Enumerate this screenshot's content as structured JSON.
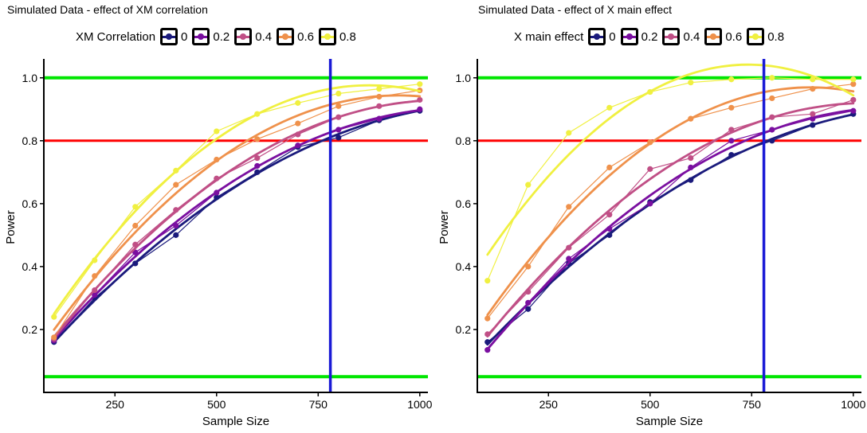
{
  "colors": {
    "0": "#1a1a7c",
    "0.2": "#7a0fa0",
    "0.4": "#c04f86",
    "0.6": "#ef914b",
    "0.8": "#f0f040",
    "green": "#00e600",
    "red": "#ff0000",
    "blue": "#1a1ad6"
  },
  "chart_data": [
    {
      "type": "line",
      "title": "Simulated Data - effect of XM correlation",
      "legend_title": "XM Correlation",
      "legend_position": "top",
      "xlabel": "Sample Size",
      "ylabel": "Power",
      "xlim": [
        75,
        1020
      ],
      "ylim": [
        0,
        1.05
      ],
      "xticks": [
        250,
        500,
        750,
        1000
      ],
      "yticks": [
        0.2,
        0.4,
        0.6,
        0.8,
        1.0
      ],
      "xtick_labels": [
        "250",
        "500",
        "750",
        "1000"
      ],
      "ytick_labels": [
        "0.2",
        "0.4",
        "0.6",
        "0.8",
        "1.0"
      ],
      "x": [
        100,
        200,
        300,
        400,
        500,
        600,
        700,
        800,
        900,
        1000
      ],
      "hlines": [
        1.0,
        0.8,
        0.05
      ],
      "vline": 780,
      "series": [
        {
          "name": "0",
          "values": [
            0.16,
            0.3,
            0.41,
            0.5,
            0.62,
            0.7,
            0.78,
            0.81,
            0.865,
            0.895
          ]
        },
        {
          "name": "0.2",
          "values": [
            0.165,
            0.31,
            0.445,
            0.53,
            0.635,
            0.72,
            0.785,
            0.835,
            0.87,
            0.9
          ]
        },
        {
          "name": "0.4",
          "values": [
            0.17,
            0.325,
            0.47,
            0.58,
            0.68,
            0.745,
            0.82,
            0.875,
            0.91,
            0.93
          ]
        },
        {
          "name": "0.6",
          "values": [
            0.175,
            0.37,
            0.53,
            0.66,
            0.74,
            0.805,
            0.855,
            0.91,
            0.94,
            0.96
          ]
        },
        {
          "name": "0.8",
          "values": [
            0.24,
            0.42,
            0.59,
            0.705,
            0.83,
            0.885,
            0.92,
            0.95,
            0.965,
            0.98
          ]
        }
      ]
    },
    {
      "type": "line",
      "title": "Simulated Data - effect of X main effect",
      "legend_title": "X main effect",
      "legend_position": "top",
      "xlabel": "Sample Size",
      "ylabel": "Power",
      "xlim": [
        75,
        1020
      ],
      "ylim": [
        0,
        1.05
      ],
      "xticks": [
        250,
        500,
        750,
        1000
      ],
      "yticks": [
        0.2,
        0.4,
        0.6,
        0.8,
        1.0
      ],
      "xtick_labels": [
        "250",
        "500",
        "750",
        "1000"
      ],
      "ytick_labels": [
        "0.2",
        "0.4",
        "0.6",
        "0.8",
        "1.0"
      ],
      "x": [
        100,
        200,
        300,
        400,
        500,
        600,
        700,
        800,
        900,
        1000
      ],
      "hlines": [
        1.0,
        0.8,
        0.05
      ],
      "vline": 780,
      "series": [
        {
          "name": "0",
          "values": [
            0.16,
            0.265,
            0.41,
            0.5,
            0.605,
            0.675,
            0.755,
            0.8,
            0.85,
            0.885
          ]
        },
        {
          "name": "0.2",
          "values": [
            0.135,
            0.285,
            0.425,
            0.52,
            0.6,
            0.715,
            0.8,
            0.835,
            0.87,
            0.895
          ]
        },
        {
          "name": "0.4",
          "values": [
            0.185,
            0.32,
            0.46,
            0.565,
            0.71,
            0.745,
            0.835,
            0.875,
            0.885,
            0.93
          ]
        },
        {
          "name": "0.6",
          "values": [
            0.235,
            0.4,
            0.59,
            0.715,
            0.795,
            0.87,
            0.905,
            0.935,
            0.965,
            0.98
          ]
        },
        {
          "name": "0.8",
          "values": [
            0.355,
            0.66,
            0.825,
            0.905,
            0.955,
            0.985,
            0.995,
            1.0,
            0.995,
            0.995
          ]
        }
      ]
    }
  ]
}
